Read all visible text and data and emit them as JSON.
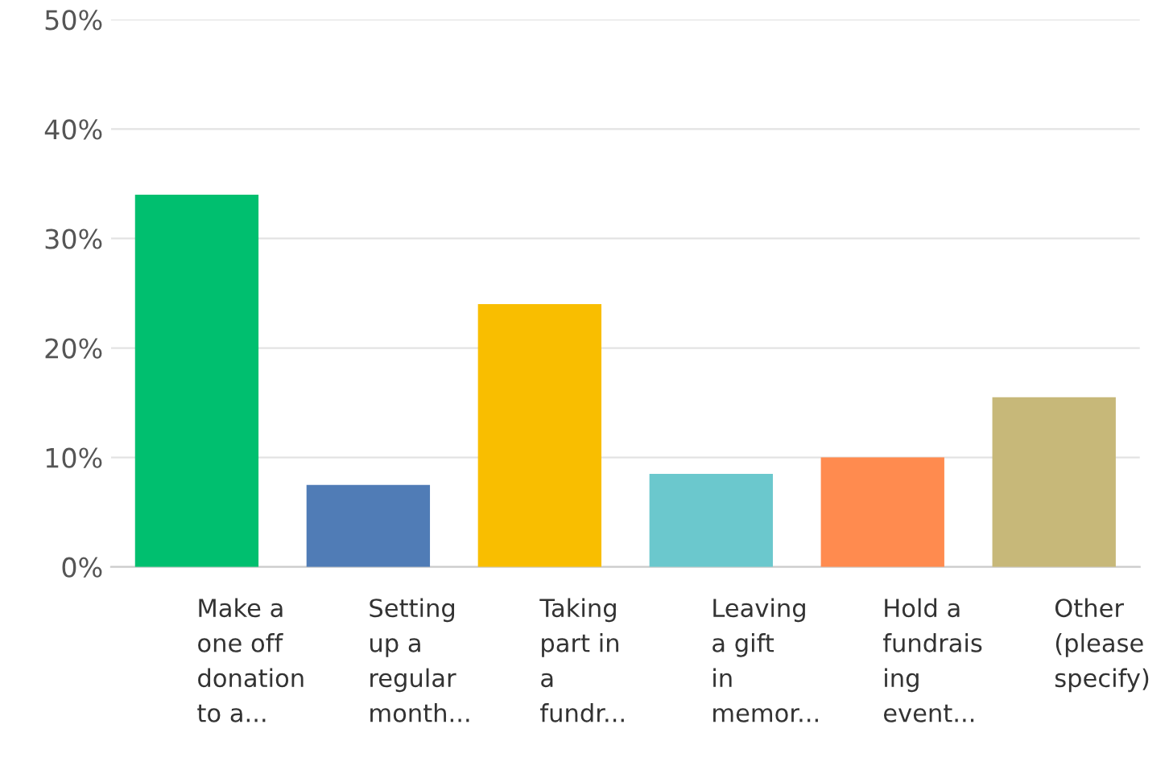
{
  "chart_data": {
    "type": "bar",
    "categories": [
      "Make a\none off\ndonation\nto a...",
      "Setting\nup a\nregular\nmonth...",
      "Taking\npart in\na\nfundr...",
      "Leaving\na gift\nin\nmemor...",
      "Hold a\nfundrais\ning\nevent...",
      "Other\n(please\nspecify)"
    ],
    "values": [
      34,
      7.5,
      24,
      8.5,
      10,
      15.5
    ],
    "colors": [
      "#00bf6f",
      "#507cb6",
      "#f9be00",
      "#6bc8cd",
      "#ff8b4f",
      "#c7b879"
    ],
    "ylim": [
      0,
      50
    ],
    "yticks": [
      {
        "value": 0,
        "label": "0%"
      },
      {
        "value": 10,
        "label": "10%"
      },
      {
        "value": 20,
        "label": "20%"
      },
      {
        "value": 30,
        "label": "30%"
      },
      {
        "value": 40,
        "label": "40%"
      },
      {
        "value": 50,
        "label": "50%"
      }
    ],
    "grid": "y",
    "legend": false
  }
}
